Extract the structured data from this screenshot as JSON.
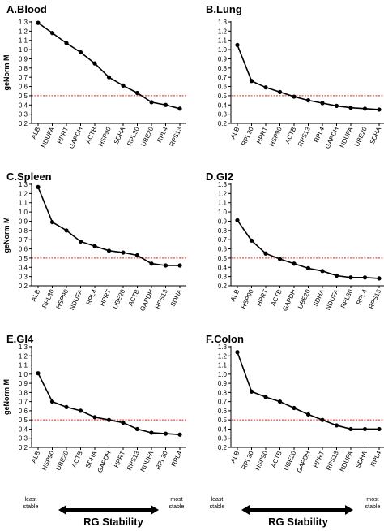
{
  "chart_data": [
    {
      "type": "line",
      "title": "A.Blood",
      "ylabel": "geNorm M",
      "ylim": [
        0.2,
        1.3
      ],
      "yticks": [
        "0.2",
        "0.3",
        "0.4",
        "0.5",
        "0.6",
        "0.7",
        "0.8",
        "0.9",
        "1.0",
        "1.1",
        "1.2",
        "1.3"
      ],
      "threshold": 0.5,
      "categories": [
        "ALB",
        "NDUFA",
        "HPRT",
        "GAPDH",
        "ACTB",
        "HSP90",
        "SDHA",
        "RPL30",
        "UBE20",
        "RPL4",
        "RPS13"
      ],
      "values": [
        1.29,
        1.18,
        1.07,
        0.97,
        0.85,
        0.7,
        0.61,
        0.53,
        0.43,
        0.4,
        0.36
      ]
    },
    {
      "type": "line",
      "title": "B.Lung",
      "ylabel": "",
      "ylim": [
        0.2,
        1.3
      ],
      "yticks": [
        "0.2",
        "0.3",
        "0.4",
        "0.5",
        "0.6",
        "0.7",
        "0.8",
        "0.9",
        "1.0",
        "1.1",
        "1.2",
        "1.3"
      ],
      "threshold": 0.5,
      "categories": [
        "ALB",
        "RPL30",
        "HPRT",
        "HSP90",
        "ACTB",
        "RPS13",
        "RPL4",
        "GAPDH",
        "NDUFA",
        "UBE20",
        "SDHA"
      ],
      "values": [
        1.05,
        0.66,
        0.59,
        0.54,
        0.49,
        0.45,
        0.42,
        0.39,
        0.37,
        0.36,
        0.35
      ]
    },
    {
      "type": "line",
      "title": "C.Spleen",
      "ylabel": "geNorm M",
      "ylim": [
        0.2,
        1.3
      ],
      "yticks": [
        "0.2",
        "0.3",
        "0.4",
        "0.5",
        "0.6",
        "0.7",
        "0.8",
        "0.9",
        "1.0",
        "1.1",
        "1.2",
        "1.3"
      ],
      "threshold": 0.5,
      "categories": [
        "ALB",
        "RPL30",
        "HSP90",
        "NDUFA",
        "RPL4",
        "HPRT",
        "UBE20",
        "ACTB",
        "GAPDH",
        "RPS13",
        "SDHA"
      ],
      "values": [
        1.27,
        0.89,
        0.8,
        0.68,
        0.63,
        0.58,
        0.56,
        0.53,
        0.44,
        0.42,
        0.42
      ]
    },
    {
      "type": "line",
      "title": "D.GI2",
      "ylabel": "",
      "ylim": [
        0.2,
        1.3
      ],
      "yticks": [
        "0.2",
        "0.3",
        "0.4",
        "0.5",
        "0.6",
        "0.7",
        "0.8",
        "0.9",
        "1.0",
        "1.1",
        "1.2",
        "1.3"
      ],
      "threshold": 0.5,
      "categories": [
        "ALB",
        "HSP90",
        "HPRT",
        "ACTB",
        "GAPDH",
        "UBE20",
        "SDHA",
        "NDUFA",
        "RPL30",
        "RPL4",
        "RPS13"
      ],
      "values": [
        0.91,
        0.69,
        0.55,
        0.49,
        0.44,
        0.39,
        0.36,
        0.31,
        0.29,
        0.29,
        0.28
      ]
    },
    {
      "type": "line",
      "title": "E.GI4",
      "ylabel": "geNorm M",
      "ylim": [
        0.2,
        1.3
      ],
      "yticks": [
        "0.2",
        "0.3",
        "0.4",
        "0.5",
        "0.6",
        "0.7",
        "0.8",
        "0.9",
        "1.0",
        "1.1",
        "1.2",
        "1.3"
      ],
      "threshold": 0.5,
      "categories": [
        "ALB",
        "HSP90",
        "UBE20",
        "ACTB",
        "SDHA",
        "GAPDH",
        "HPRT",
        "RPS13",
        "NDUFA",
        "RPL30",
        "RPL4"
      ],
      "values": [
        1.01,
        0.7,
        0.64,
        0.6,
        0.53,
        0.5,
        0.47,
        0.4,
        0.36,
        0.35,
        0.34
      ]
    },
    {
      "type": "line",
      "title": "F.Colon",
      "ylabel": "",
      "ylim": [
        0.2,
        1.3
      ],
      "yticks": [
        "0.2",
        "0.3",
        "0.4",
        "0.5",
        "0.6",
        "0.7",
        "0.8",
        "0.9",
        "1.0",
        "1.1",
        "1.2",
        "1.3"
      ],
      "threshold": 0.5,
      "categories": [
        "ALB",
        "RPL30",
        "HSP90",
        "ACTB",
        "UBE20",
        "GAPDH",
        "HPRT",
        "RPS13",
        "NDUFA",
        "SDHA",
        "RPL4"
      ],
      "values": [
        1.24,
        0.81,
        0.75,
        0.7,
        0.63,
        0.56,
        0.5,
        0.44,
        0.4,
        0.4,
        0.4
      ]
    }
  ],
  "footer": {
    "least_line1": "least",
    "least_line2": "stable",
    "most_line1": "most",
    "most_line2": "stable",
    "title": "RG Stability"
  },
  "colors": {
    "line": "#000000",
    "threshold": "#d9281c"
  }
}
